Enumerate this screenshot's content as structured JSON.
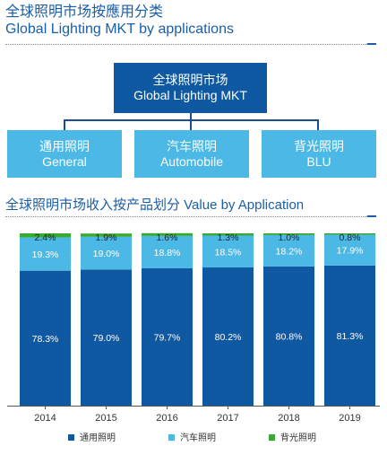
{
  "header": {
    "title_zh": "全球照明市场按應用分类",
    "title_en": "Global Lighting MKT by applications"
  },
  "tree": {
    "root": {
      "zh": "全球照明市场",
      "en": "Global Lighting MKT"
    },
    "children": [
      {
        "zh": "通用照明",
        "en": "General"
      },
      {
        "zh": "汽车照明",
        "en": "Automobile"
      },
      {
        "zh": "背光照明",
        "en": "BLU"
      }
    ]
  },
  "chart_section_title": "全球照明市场收入按产品划分 Value by Application",
  "colors": {
    "general": "#0e59a2",
    "automobile": "#4cb8e6",
    "blu": "#3aaa35",
    "title": "#1a5ea8"
  },
  "chart_data": {
    "type": "bar",
    "stacked": true,
    "categories": [
      "2014",
      "2015",
      "2016",
      "2017",
      "2018",
      "2019"
    ],
    "series": [
      {
        "name": "通用照明",
        "values": [
          78.3,
          79.0,
          79.7,
          80.2,
          80.8,
          81.3
        ],
        "labels": [
          "78.3%",
          "79.0%",
          "79.7%",
          "80.2%",
          "80.8%",
          "81.3%"
        ]
      },
      {
        "name": "汽车照明",
        "values": [
          19.3,
          19.0,
          18.8,
          18.5,
          18.2,
          17.9
        ],
        "labels": [
          "19.3%",
          "19.0%",
          "18.8%",
          "18.5%",
          "18.2%",
          "17.9%"
        ]
      },
      {
        "name": "背光照明",
        "values": [
          2.4,
          1.9,
          1.6,
          1.3,
          1.0,
          0.8
        ],
        "labels": [
          "2.4%",
          "1.9%",
          "1.6%",
          "1.3%",
          "1.0%",
          "0.8%"
        ]
      }
    ],
    "ylim": [
      0,
      100
    ],
    "legend_position": "bottom"
  }
}
